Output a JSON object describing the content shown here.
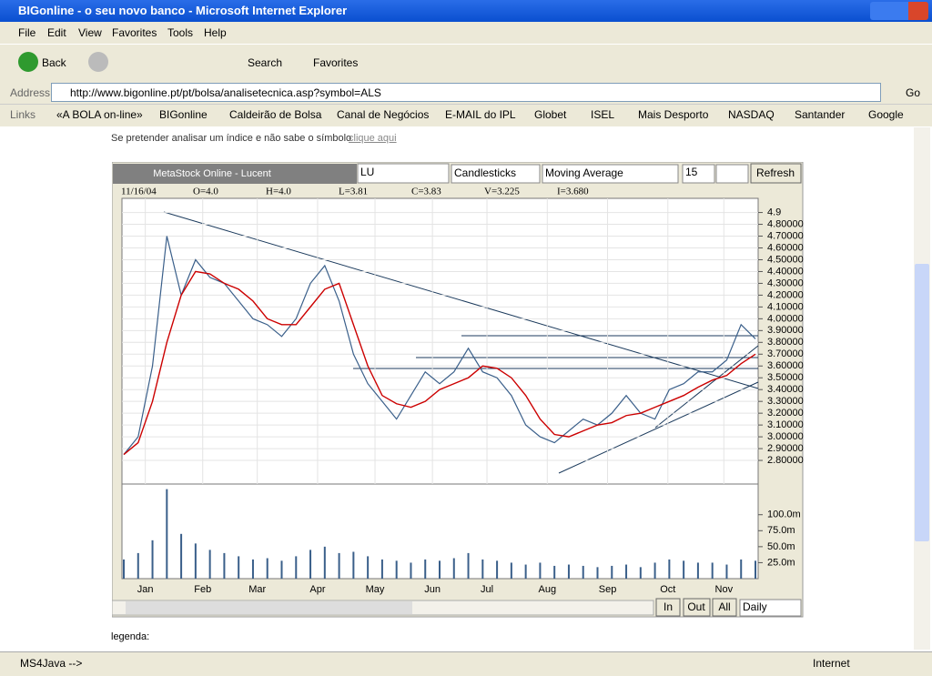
{
  "window": {
    "title": "BIGonline - o seu novo banco - Microsoft Internet Explorer",
    "menu": [
      "File",
      "Edit",
      "View",
      "Favorites",
      "Tools",
      "Help"
    ],
    "toolbar": {
      "back": "Back",
      "search": "Search",
      "favorites": "Favorites"
    },
    "address": {
      "label": "Address",
      "url": "http://www.bigonline.pt/pt/bolsa/analisetecnica.asp?symbol=ALS",
      "go": "Go"
    },
    "links": {
      "label": "Links",
      "items": [
        "«A BOLA on-line»",
        "BIGonline",
        "Caldeirão de Bolsa",
        "Canal de Negócios",
        "E-MAIL do IPL",
        "Globet",
        "ISEL",
        "Mais Desporto",
        "NASDAQ",
        "Santander",
        "Google"
      ]
    },
    "status": {
      "text": "MS4Java -->",
      "zone": "Internet"
    }
  },
  "page": {
    "intro": "Se pretender analisar um índice e não sabe o símbolo",
    "link": "clique aqui",
    "legend": "legenda:"
  },
  "applet": {
    "title": "MetaStock Online - Lucent",
    "symbol": "LU",
    "chart_style": "Candlesticks",
    "indicator": "Moving Average",
    "period": "15",
    "refresh": "Refresh",
    "readout": [
      "11/16/04",
      "O=4.0",
      "H=4.0",
      "L=3.81",
      "C=3.83",
      "V=3.225",
      "I=3.680"
    ],
    "controls": {
      "in": "In",
      "out": "Out",
      "all": "All",
      "interval": "Daily"
    }
  },
  "chart_data": {
    "type": "line",
    "xlim": [
      0,
      44
    ],
    "xticks": [
      {
        "value": 1.5,
        "label": "Jan"
      },
      {
        "value": 5.5,
        "label": "Feb"
      },
      {
        "value": 9.3,
        "label": "Mar"
      },
      {
        "value": 13.5,
        "label": "Apr"
      },
      {
        "value": 17.5,
        "label": "May"
      },
      {
        "value": 21.5,
        "label": "Jun"
      },
      {
        "value": 25.3,
        "label": "Jul"
      },
      {
        "value": 29.5,
        "label": "Aug"
      },
      {
        "value": 33.7,
        "label": "Sep"
      },
      {
        "value": 37.9,
        "label": "Oct"
      },
      {
        "value": 41.8,
        "label": "Nov"
      }
    ],
    "ylim": [
      2.6,
      5.02
    ],
    "yticks": [
      4.9,
      {
        "value": 4.8,
        "label": "4.80000"
      },
      {
        "value": 4.7,
        "label": "4.70000"
      },
      {
        "value": 4.6,
        "label": "4.60000"
      },
      {
        "value": 4.5,
        "label": "4.50000"
      },
      {
        "value": 4.4,
        "label": "4.40000"
      },
      {
        "value": 4.3,
        "label": "4.30000"
      },
      {
        "value": 4.2,
        "label": "4.20000"
      },
      {
        "value": 4.1,
        "label": "4.10000"
      },
      {
        "value": 4.0,
        "label": "4.00000"
      },
      {
        "value": 3.9,
        "label": "3.90000"
      },
      {
        "value": 3.8,
        "label": "3.80000"
      },
      {
        "value": 3.7,
        "label": "3.70000"
      },
      {
        "value": 3.6,
        "label": "3.60000"
      },
      {
        "value": 3.5,
        "label": "3.50000"
      },
      {
        "value": 3.4,
        "label": "3.40000"
      },
      {
        "value": 3.3,
        "label": "3.30000"
      },
      {
        "value": 3.2,
        "label": "3.20000"
      },
      {
        "value": 3.1,
        "label": "3.10000"
      },
      {
        "value": 3.0,
        "label": "3.00000"
      },
      {
        "value": 2.9,
        "label": "2.90000"
      },
      {
        "value": 2.8,
        "label": "2.80000"
      }
    ],
    "grid": true,
    "series": [
      {
        "color": "#3a5f8a",
        "values": [
          2.85,
          3.0,
          3.6,
          4.7,
          4.2,
          4.5,
          4.35,
          4.3,
          4.15,
          4.0,
          3.95,
          3.85,
          4.0,
          4.3,
          4.45,
          4.15,
          3.7,
          3.45,
          3.3,
          3.15,
          3.35,
          3.55,
          3.45,
          3.55,
          3.75,
          3.55,
          3.5,
          3.35,
          3.1,
          3.0,
          2.95,
          3.05,
          3.15,
          3.1,
          3.2,
          3.35,
          3.2,
          3.15,
          3.4,
          3.45,
          3.55,
          3.55,
          3.65,
          3.95,
          3.83
        ]
      },
      {
        "color": "#cc0000",
        "values": [
          2.85,
          2.95,
          3.3,
          3.8,
          4.2,
          4.4,
          4.38,
          4.3,
          4.25,
          4.15,
          4.0,
          3.95,
          3.95,
          4.1,
          4.25,
          4.3,
          3.95,
          3.6,
          3.35,
          3.28,
          3.25,
          3.3,
          3.4,
          3.45,
          3.5,
          3.6,
          3.58,
          3.5,
          3.35,
          3.15,
          3.02,
          3.0,
          3.05,
          3.1,
          3.12,
          3.18,
          3.2,
          3.25,
          3.3,
          3.35,
          3.42,
          3.48,
          3.52,
          3.62,
          3.7
        ]
      }
    ],
    "volume": {
      "color": "#3a5f8a",
      "ylim": [
        0,
        148000000
      ],
      "yticks": [
        {
          "value": 100000000,
          "label": "100.0m"
        },
        {
          "value": 75000000,
          "label": "75.0m"
        },
        {
          "value": 50000000,
          "label": "50.0m"
        },
        {
          "value": 25000000,
          "label": "25.0m"
        }
      ],
      "values": [
        30000000,
        40000000,
        60000000,
        140000000,
        70000000,
        55000000,
        45000000,
        40000000,
        35000000,
        30000000,
        32000000,
        28000000,
        35000000,
        45000000,
        50000000,
        40000000,
        42000000,
        35000000,
        30000000,
        28000000,
        25000000,
        30000000,
        28000000,
        32000000,
        40000000,
        30000000,
        28000000,
        25000000,
        22000000,
        25000000,
        20000000,
        22000000,
        20000000,
        18000000,
        20000000,
        22000000,
        18000000,
        25000000,
        30000000,
        28000000,
        25000000,
        25000000,
        22000000,
        30000000,
        28000000
      ]
    }
  }
}
